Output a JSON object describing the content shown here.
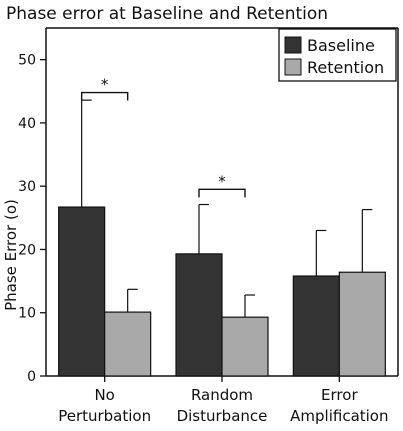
{
  "chart_data": {
    "type": "bar",
    "title": "Phase error at Baseline and Retention",
    "xlabel": "",
    "ylabel": "Phase Error (o)",
    "ylim": [
      0,
      55
    ],
    "yticks": [
      0,
      10,
      20,
      30,
      40,
      50
    ],
    "categories": [
      [
        "No",
        "Perturbation"
      ],
      [
        "Random",
        "Disturbance"
      ],
      [
        "Error",
        "Amplification"
      ]
    ],
    "series": [
      {
        "name": "Baseline",
        "color": "#333333",
        "values": [
          26.7,
          19.3,
          15.8
        ],
        "error": [
          16.9,
          7.8,
          7.2
        ]
      },
      {
        "name": "Retention",
        "color": "#a9a9a9",
        "values": [
          10.1,
          9.3,
          16.4
        ],
        "error": [
          3.6,
          3.5,
          9.9
        ]
      }
    ],
    "significance": [
      {
        "category_index": 0,
        "label": "*"
      },
      {
        "category_index": 1,
        "label": "*"
      }
    ],
    "legend_position": "top-right",
    "grid": false
  }
}
